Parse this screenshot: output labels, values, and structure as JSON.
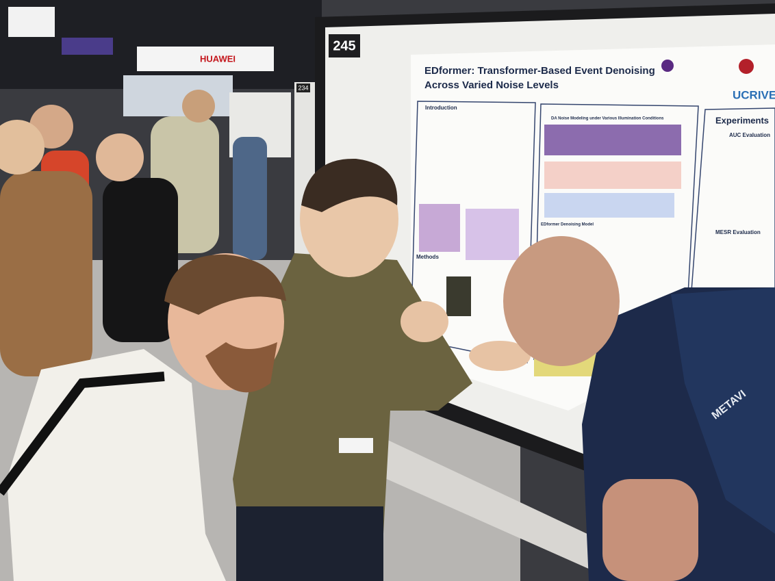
{
  "booth_numbers": [
    "245",
    "234"
  ],
  "sponsor_sign": "HUAWEI",
  "poster": {
    "title_line1": "EDformer: Transformer-Based Event Denoising",
    "title_line2": "Across Varied Noise Levels",
    "logo_text": "UCRIVE",
    "sections": [
      "Introduction",
      "Methods",
      "DA Noise Modeling under Various Illumination Conditions",
      "EDformer Denoising Model",
      "Experiments",
      "AUC Evaluation",
      "MESR Evaluation"
    ]
  },
  "shirt_text": "METAVI"
}
